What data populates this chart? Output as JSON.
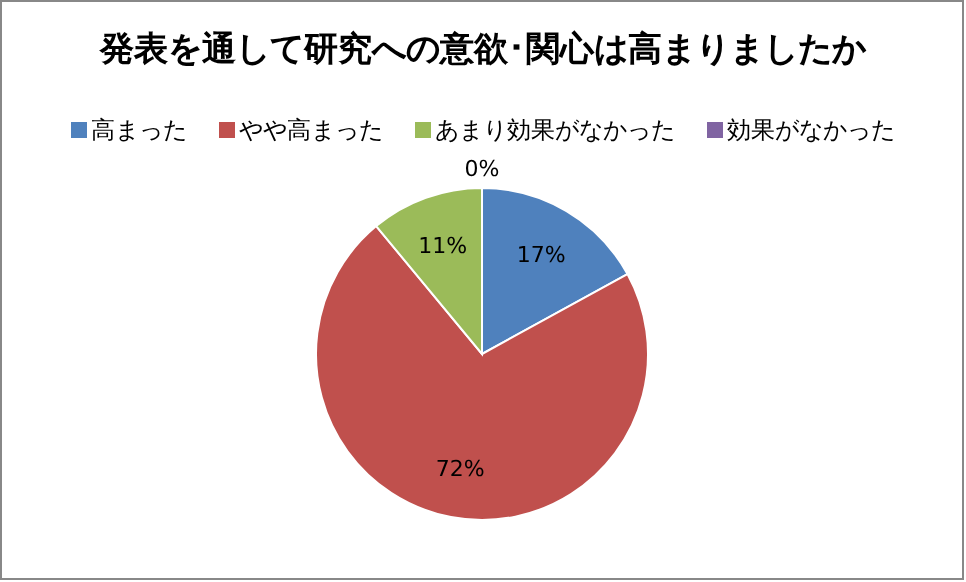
{
  "chart_data": {
    "type": "pie",
    "title": "発表を通して研究への意欲･関心は高まりましたか",
    "categories": [
      "高まった",
      "やや高まった",
      "あまり効果がなかった",
      "効果がなかった"
    ],
    "values": [
      17,
      72,
      11,
      0
    ],
    "colors": [
      "#4f81bd",
      "#c0504d",
      "#9bbb59",
      "#8064a2"
    ],
    "value_labels": [
      "17%",
      "72%",
      "11%",
      "0%"
    ],
    "legend": "top"
  }
}
